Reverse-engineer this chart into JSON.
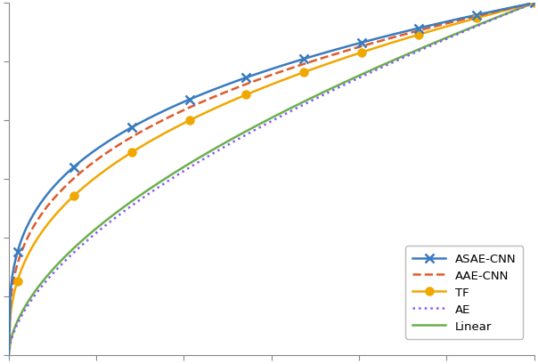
{
  "title": "",
  "xlim": [
    0,
    1
  ],
  "ylim": [
    0,
    1
  ],
  "curves": {
    "ASAE-CNN": {
      "auc": 0.74,
      "k": 0.3,
      "color": "#3a7bbf",
      "linestyle": "-",
      "linewidth": 1.8,
      "marker": "x",
      "markersize": 7,
      "markeredgewidth": 1.8,
      "n_markers": 10
    },
    "AAE-CNN": {
      "auc": 0.72,
      "k": 0.33,
      "color": "#e05a2b",
      "linestyle": "--",
      "linewidth": 1.8,
      "marker": null,
      "markersize": 0,
      "n_markers": 0
    },
    "TF": {
      "auc": 0.67,
      "k": 0.38,
      "color": "#f0a800",
      "linestyle": "-",
      "linewidth": 1.8,
      "marker": "o",
      "markersize": 6,
      "markeredgewidth": 1.5,
      "n_markers": 10
    },
    "AE": {
      "auc": 0.63,
      "k": 0.59,
      "color": "#8b5cf6",
      "linestyle": ":",
      "linewidth": 1.8,
      "marker": null,
      "markersize": 0,
      "n_markers": 0
    },
    "Linear": {
      "auc": 0.64,
      "k": 0.57,
      "color": "#6ab04c",
      "linestyle": "-",
      "linewidth": 1.8,
      "marker": null,
      "markersize": 0,
      "n_markers": 0
    }
  },
  "legend_order": [
    "ASAE-CNN",
    "AAE-CNN",
    "TF",
    "AE",
    "Linear"
  ],
  "background_color": "#ffffff",
  "grid": false,
  "axis_color": "#888888"
}
